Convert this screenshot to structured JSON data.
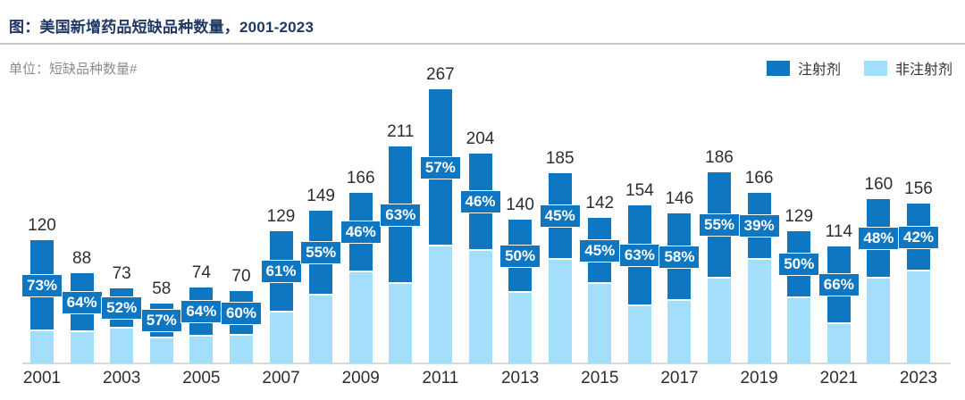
{
  "header": {
    "title": "图：美国新增药品短缺品种数量，2001-2023",
    "unit_label": "单位：短缺品种数量#"
  },
  "legend": {
    "position": "top-right",
    "items": [
      {
        "name": "injectable",
        "label": "注射剂",
        "color": "#0F76C2"
      },
      {
        "name": "non-injectable",
        "label": "非注射剂",
        "color": "#A3DFFB"
      }
    ]
  },
  "chart_data": {
    "type": "bar",
    "stacked": true,
    "title": "美国新增药品短缺品种数量，2001-2023",
    "ylabel": "短缺品种数量#",
    "x": [
      2001,
      2002,
      2003,
      2004,
      2005,
      2006,
      2007,
      2008,
      2009,
      2010,
      2011,
      2012,
      2013,
      2014,
      2015,
      2016,
      2017,
      2018,
      2019,
      2020,
      2021,
      2022,
      2023
    ],
    "totals": [
      120,
      88,
      73,
      58,
      74,
      70,
      129,
      149,
      166,
      211,
      267,
      204,
      140,
      185,
      142,
      154,
      146,
      186,
      166,
      129,
      114,
      160,
      156
    ],
    "series": [
      {
        "name": "注射剂",
        "color": "#0F76C2",
        "share_pct": [
          73,
          64,
          52,
          57,
          64,
          60,
          61,
          55,
          46,
          63,
          57,
          46,
          50,
          45,
          45,
          63,
          58,
          55,
          39,
          50,
          66,
          48,
          42
        ]
      },
      {
        "name": "非注射剂",
        "color": "#A3DFFB",
        "share_pct_note": "remainder of total (100% minus 注射剂 share)"
      }
    ],
    "bar_total_labels": [
      "120",
      "88",
      "73",
      "58",
      "74",
      "70",
      "129",
      "149",
      "166",
      "211",
      "267",
      "204",
      "140",
      "185",
      "142",
      "154",
      "146",
      "186",
      "166",
      "129",
      "114",
      "160",
      "156"
    ],
    "bar_pct_labels": [
      "73%",
      "64%",
      "52%",
      "57%",
      "64%",
      "60%",
      "61%",
      "55%",
      "46%",
      "63%",
      "57%",
      "46%",
      "50%",
      "45%",
      "45%",
      "63%",
      "58%",
      "55%",
      "39%",
      "50%",
      "66%",
      "48%",
      "42%"
    ],
    "x_tick_labels": [
      "2001",
      "2003",
      "2005",
      "2007",
      "2009",
      "2011",
      "2013",
      "2015",
      "2017",
      "2019",
      "2021",
      "2023"
    ],
    "ylim": [
      0,
      280
    ],
    "grid": false,
    "legend_position": "top-right",
    "colors": {
      "injectable": "#0F76C2",
      "non_injectable": "#A3DFFB",
      "title_navy": "#1F3864",
      "rule_gray": "#C7C7C7",
      "baseline_gray": "#D8D8D8",
      "label_dark": "#2E2E2E",
      "unit_gray": "#8C8C8C"
    }
  }
}
